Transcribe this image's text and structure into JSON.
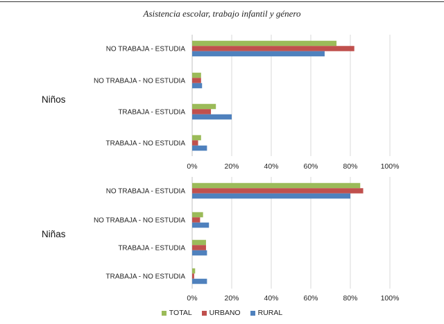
{
  "chart_data": {
    "type": "bar",
    "orientation": "horizontal",
    "title": "Asistencia escolar, trabajo infantil y género",
    "categories": [
      "NO TRABAJA - ESTUDIA",
      "NO TRABAJA - NO ESTUDIA",
      "TRABAJA - ESTUDIA",
      "TRABAJA - NO ESTUDIA"
    ],
    "x_ticks": [
      "0%",
      "20%",
      "40%",
      "60%",
      "80%",
      "100%"
    ],
    "xlim": [
      0,
      100
    ],
    "grid": true,
    "legend_position": "bottom",
    "colors": {
      "TOTAL": "#9bbb59",
      "URBANO": "#c0504d",
      "RURAL": "#4f81bd"
    },
    "panels": [
      {
        "group": "Niños",
        "series": [
          {
            "name": "TOTAL",
            "values": [
              73,
              4.5,
              12,
              4.5
            ]
          },
          {
            "name": "URBANO",
            "values": [
              82,
              4.5,
              9.5,
              3
            ]
          },
          {
            "name": "RURAL",
            "values": [
              67,
              5,
              20,
              7.5
            ]
          }
        ]
      },
      {
        "group": "Niñas",
        "series": [
          {
            "name": "TOTAL",
            "values": [
              85,
              5.5,
              7,
              1.5
            ]
          },
          {
            "name": "URBANO",
            "values": [
              86.5,
              4,
              7,
              1
            ]
          },
          {
            "name": "RURAL",
            "values": [
              80,
              8.5,
              7.5,
              7.5
            ]
          }
        ]
      }
    ]
  }
}
